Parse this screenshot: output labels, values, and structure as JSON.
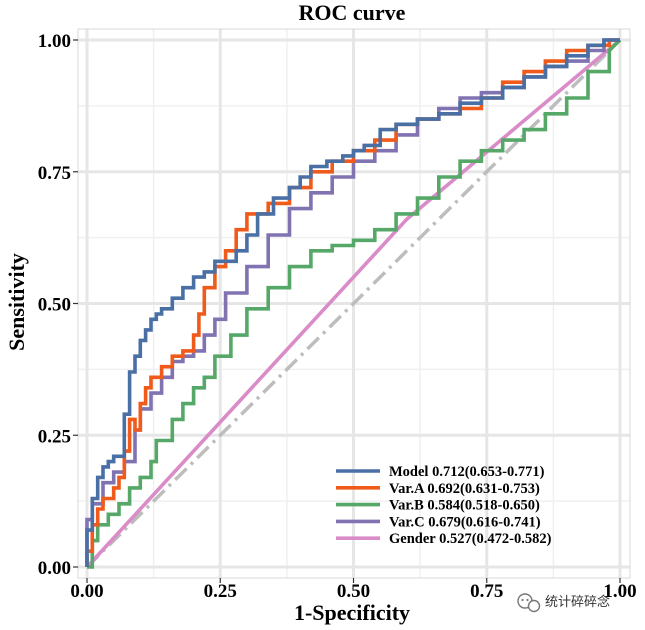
{
  "chart_data": {
    "type": "line",
    "title": "ROC curve",
    "xlabel": "1-Specificity",
    "ylabel": "Sensitivity",
    "xlim": [
      0,
      1
    ],
    "ylim": [
      0,
      1
    ],
    "x_ticks": [
      0,
      0.25,
      0.5,
      0.75,
      1
    ],
    "y_ticks": [
      0,
      0.25,
      0.5,
      0.75,
      1
    ],
    "x_tick_labels": [
      "0.00",
      "0.25",
      "0.50",
      "0.75",
      "1.00"
    ],
    "y_tick_labels": [
      "0.00",
      "0.25",
      "0.50",
      "0.75",
      "1.00"
    ],
    "grid": true,
    "legend_position": "bottom-right",
    "reference_line": {
      "x": [
        0,
        1
      ],
      "y": [
        0,
        1
      ],
      "style": "dash-dot",
      "color": "#BDBDBD"
    },
    "series": [
      {
        "name": "Model",
        "label": "Model 0.712(0.653-0.771)",
        "color": "#4A6FA5",
        "x": [
          0,
          0,
          0.01,
          0.01,
          0.02,
          0.02,
          0.03,
          0.03,
          0.04,
          0.04,
          0.05,
          0.05,
          0.06,
          0.06,
          0.07,
          0.07,
          0.08,
          0.08,
          0.09,
          0.09,
          0.1,
          0.1,
          0.11,
          0.11,
          0.12,
          0.12,
          0.13,
          0.13,
          0.14,
          0.14,
          0.16,
          0.16,
          0.18,
          0.18,
          0.2,
          0.2,
          0.22,
          0.22,
          0.24,
          0.24,
          0.26,
          0.26,
          0.28,
          0.28,
          0.3,
          0.3,
          0.32,
          0.32,
          0.35,
          0.35,
          0.38,
          0.38,
          0.4,
          0.4,
          0.42,
          0.42,
          0.45,
          0.45,
          0.48,
          0.48,
          0.5,
          0.5,
          0.52,
          0.52,
          0.55,
          0.55,
          0.58,
          0.58,
          0.62,
          0.62,
          0.66,
          0.66,
          0.7,
          0.7,
          0.74,
          0.74,
          0.78,
          0.78,
          0.82,
          0.82,
          0.86,
          0.86,
          0.9,
          0.9,
          0.94,
          0.94,
          0.97,
          0.97,
          1
        ],
        "y": [
          0,
          0.07,
          0.07,
          0.13,
          0.13,
          0.17,
          0.17,
          0.19,
          0.19,
          0.2,
          0.2,
          0.21,
          0.21,
          0.21,
          0.21,
          0.29,
          0.29,
          0.37,
          0.37,
          0.4,
          0.4,
          0.43,
          0.43,
          0.45,
          0.45,
          0.47,
          0.47,
          0.48,
          0.48,
          0.49,
          0.49,
          0.51,
          0.51,
          0.53,
          0.53,
          0.55,
          0.55,
          0.56,
          0.56,
          0.58,
          0.58,
          0.58,
          0.58,
          0.6,
          0.6,
          0.63,
          0.63,
          0.67,
          0.67,
          0.7,
          0.7,
          0.72,
          0.72,
          0.74,
          0.74,
          0.76,
          0.76,
          0.77,
          0.77,
          0.78,
          0.78,
          0.79,
          0.79,
          0.8,
          0.8,
          0.83,
          0.83,
          0.84,
          0.84,
          0.85,
          0.85,
          0.86,
          0.86,
          0.88,
          0.88,
          0.89,
          0.89,
          0.91,
          0.91,
          0.93,
          0.93,
          0.95,
          0.95,
          0.97,
          0.97,
          0.99,
          0.99,
          1,
          1
        ]
      },
      {
        "name": "Var.A",
        "label": "Var.A 0.692(0.631-0.753)",
        "color": "#F05A1A",
        "x": [
          0,
          0,
          0.01,
          0.01,
          0.02,
          0.02,
          0.03,
          0.03,
          0.05,
          0.05,
          0.06,
          0.06,
          0.07,
          0.07,
          0.08,
          0.08,
          0.09,
          0.09,
          0.1,
          0.1,
          0.11,
          0.11,
          0.12,
          0.12,
          0.14,
          0.14,
          0.16,
          0.16,
          0.18,
          0.18,
          0.2,
          0.2,
          0.21,
          0.21,
          0.22,
          0.22,
          0.24,
          0.24,
          0.26,
          0.26,
          0.28,
          0.28,
          0.3,
          0.3,
          0.34,
          0.34,
          0.38,
          0.38,
          0.42,
          0.42,
          0.46,
          0.46,
          0.5,
          0.5,
          0.54,
          0.54,
          0.58,
          0.58,
          0.62,
          0.62,
          0.66,
          0.66,
          0.7,
          0.7,
          0.74,
          0.74,
          0.78,
          0.78,
          0.82,
          0.82,
          0.86,
          0.86,
          0.9,
          0.9,
          0.94,
          0.94,
          0.98,
          0.98,
          1
        ],
        "y": [
          0,
          0.03,
          0.03,
          0.08,
          0.08,
          0.11,
          0.11,
          0.13,
          0.13,
          0.15,
          0.15,
          0.17,
          0.17,
          0.22,
          0.22,
          0.28,
          0.28,
          0.26,
          0.26,
          0.31,
          0.31,
          0.34,
          0.34,
          0.36,
          0.36,
          0.38,
          0.38,
          0.4,
          0.4,
          0.41,
          0.41,
          0.44,
          0.44,
          0.48,
          0.48,
          0.53,
          0.53,
          0.57,
          0.57,
          0.6,
          0.6,
          0.64,
          0.64,
          0.67,
          0.67,
          0.69,
          0.69,
          0.72,
          0.72,
          0.75,
          0.75,
          0.77,
          0.77,
          0.79,
          0.79,
          0.81,
          0.81,
          0.84,
          0.84,
          0.85,
          0.85,
          0.86,
          0.86,
          0.87,
          0.87,
          0.89,
          0.89,
          0.92,
          0.92,
          0.94,
          0.94,
          0.96,
          0.96,
          0.98,
          0.98,
          0.99,
          0.99,
          1,
          1
        ]
      },
      {
        "name": "Var.B",
        "label": "Var.B 0.584(0.518-0.650)",
        "color": "#55A868",
        "x": [
          0,
          0.01,
          0.01,
          0.02,
          0.02,
          0.04,
          0.04,
          0.06,
          0.06,
          0.08,
          0.08,
          0.1,
          0.1,
          0.12,
          0.12,
          0.13,
          0.13,
          0.16,
          0.16,
          0.18,
          0.18,
          0.2,
          0.2,
          0.22,
          0.22,
          0.24,
          0.24,
          0.27,
          0.27,
          0.3,
          0.3,
          0.34,
          0.34,
          0.38,
          0.38,
          0.42,
          0.42,
          0.46,
          0.46,
          0.5,
          0.5,
          0.54,
          0.54,
          0.58,
          0.58,
          0.62,
          0.62,
          0.66,
          0.66,
          0.7,
          0.7,
          0.74,
          0.74,
          0.78,
          0.78,
          0.82,
          0.82,
          0.86,
          0.86,
          0.9,
          0.9,
          0.94,
          0.94,
          0.98,
          0.98,
          1
        ],
        "y": [
          0,
          0,
          0.05,
          0.05,
          0.08,
          0.08,
          0.1,
          0.1,
          0.12,
          0.12,
          0.15,
          0.15,
          0.17,
          0.17,
          0.2,
          0.2,
          0.24,
          0.24,
          0.28,
          0.28,
          0.31,
          0.31,
          0.34,
          0.34,
          0.36,
          0.36,
          0.4,
          0.4,
          0.44,
          0.44,
          0.49,
          0.49,
          0.53,
          0.53,
          0.57,
          0.57,
          0.6,
          0.6,
          0.61,
          0.61,
          0.62,
          0.62,
          0.64,
          0.64,
          0.67,
          0.67,
          0.7,
          0.7,
          0.74,
          0.74,
          0.77,
          0.77,
          0.79,
          0.79,
          0.81,
          0.81,
          0.83,
          0.83,
          0.86,
          0.86,
          0.89,
          0.89,
          0.94,
          0.94,
          0.98,
          1
        ]
      },
      {
        "name": "Var.C",
        "label": "Var.C 0.679(0.616-0.741)",
        "color": "#8172B2",
        "x": [
          0,
          0,
          0.01,
          0.01,
          0.03,
          0.03,
          0.05,
          0.05,
          0.07,
          0.07,
          0.09,
          0.09,
          0.1,
          0.1,
          0.12,
          0.12,
          0.14,
          0.14,
          0.16,
          0.16,
          0.18,
          0.18,
          0.2,
          0.2,
          0.22,
          0.22,
          0.24,
          0.24,
          0.26,
          0.26,
          0.3,
          0.3,
          0.34,
          0.34,
          0.38,
          0.38,
          0.42,
          0.42,
          0.46,
          0.46,
          0.5,
          0.5,
          0.54,
          0.54,
          0.58,
          0.58,
          0.62,
          0.62,
          0.66,
          0.66,
          0.7,
          0.7,
          0.74,
          0.74,
          0.78,
          0.78,
          0.82,
          0.82,
          0.86,
          0.86,
          0.9,
          0.9,
          0.94,
          0.94,
          0.97,
          0.97,
          1
        ],
        "y": [
          0,
          0.09,
          0.09,
          0.12,
          0.12,
          0.16,
          0.16,
          0.18,
          0.18,
          0.2,
          0.2,
          0.26,
          0.26,
          0.3,
          0.3,
          0.33,
          0.33,
          0.36,
          0.36,
          0.39,
          0.39,
          0.4,
          0.4,
          0.41,
          0.41,
          0.44,
          0.44,
          0.47,
          0.47,
          0.52,
          0.52,
          0.57,
          0.57,
          0.63,
          0.63,
          0.68,
          0.68,
          0.71,
          0.71,
          0.74,
          0.74,
          0.77,
          0.77,
          0.79,
          0.79,
          0.82,
          0.82,
          0.85,
          0.85,
          0.87,
          0.87,
          0.89,
          0.89,
          0.9,
          0.9,
          0.91,
          0.91,
          0.93,
          0.93,
          0.95,
          0.95,
          0.96,
          0.96,
          0.98,
          0.98,
          1,
          1
        ]
      },
      {
        "name": "Gender",
        "label": "Gender 0.527(0.472-0.582)",
        "color": "#D98CC8",
        "x": [
          0,
          0.6,
          1
        ],
        "y": [
          0,
          0.66,
          1
        ]
      }
    ]
  },
  "watermark": {
    "text": "统计碎碎念",
    "icon": "wechat-icon"
  }
}
